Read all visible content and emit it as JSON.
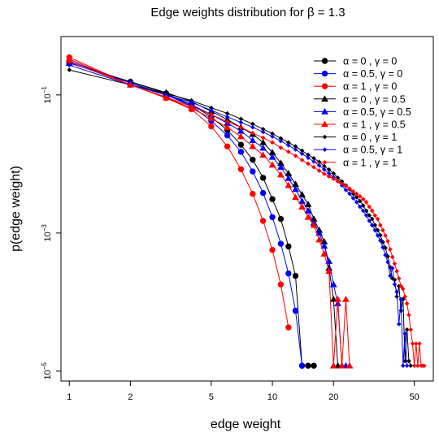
{
  "chart_data": {
    "type": "line",
    "title": "Edge weights distribution for β = 1.3",
    "xlabel": "edge weight",
    "ylabel": "p(edge weight)",
    "xscale": "log",
    "yscale": "log",
    "xlim": [
      0.91,
      62
    ],
    "ylim": [
      7.2e-06,
      0.7
    ],
    "xticks": [
      1,
      2,
      5,
      10,
      20,
      50
    ],
    "xtick_labels": [
      "1",
      "2",
      "5",
      "10",
      "20",
      "50"
    ],
    "yticks": [
      0.1,
      0.001,
      1e-05
    ],
    "ytick_labels": [
      {
        "base": "10",
        "exp": "−1"
      },
      {
        "base": "10",
        "exp": "−3"
      },
      {
        "base": "10",
        "exp": "−5"
      }
    ],
    "grid": false,
    "legend_position": "top-right",
    "series": [
      {
        "name": "α = 0   , γ = 0",
        "color": "#000000",
        "marker": "circle",
        "x": [
          1,
          2,
          3,
          4,
          5,
          6,
          7,
          8,
          9,
          10,
          11,
          12,
          13,
          14,
          15,
          16
        ],
        "y": [
          0.29,
          0.155,
          0.105,
          0.072,
          0.048,
          0.031,
          0.019,
          0.0115,
          0.0063,
          0.0031,
          0.0016,
          0.00064,
          0.00024,
          1.2e-05,
          1.2e-05,
          1.2e-05
        ]
      },
      {
        "name": "α = 0.5, γ = 0",
        "color": "#0000ff",
        "marker": "circle",
        "x": [
          1,
          2,
          3,
          4,
          5,
          6,
          7,
          8,
          9,
          10,
          11,
          12,
          13,
          14
        ],
        "y": [
          0.31,
          0.15,
          0.1,
          0.069,
          0.042,
          0.026,
          0.015,
          0.0078,
          0.0038,
          0.0017,
          0.0007,
          0.00026,
          7.5e-05,
          1.2e-05
        ]
      },
      {
        "name": "α = 1   , γ = 0",
        "color": "#ff0000",
        "marker": "circle",
        "x": [
          1,
          2,
          3,
          4,
          5,
          6,
          7,
          8,
          9,
          10,
          11,
          12
        ],
        "y": [
          0.35,
          0.14,
          0.09,
          0.062,
          0.035,
          0.018,
          0.0084,
          0.0037,
          0.0015,
          0.00057,
          0.00018,
          4.3e-05
        ]
      },
      {
        "name": "α = 0   , γ = 0.5",
        "color": "#000000",
        "marker": "triangle",
        "x": [
          1,
          2,
          3,
          4,
          5,
          6,
          7,
          8,
          9,
          10,
          11,
          12,
          13,
          14,
          15,
          16,
          17,
          18,
          19,
          20,
          21,
          22
        ],
        "y": [
          0.29,
          0.155,
          0.108,
          0.08,
          0.058,
          0.044,
          0.034,
          0.027,
          0.0205,
          0.0147,
          0.0103,
          0.0073,
          0.0051,
          0.0036,
          0.0026,
          0.0016,
          0.0011,
          0.00075,
          0.00031,
          0.00011,
          1.2e-05,
          1.2e-05
        ]
      },
      {
        "name": "α = 0.5, γ = 0.5",
        "color": "#0000ff",
        "marker": "triangle",
        "x": [
          1,
          2,
          3,
          4,
          5,
          6,
          7,
          8,
          9,
          10,
          11,
          12,
          13,
          14,
          15,
          16,
          17,
          18,
          19,
          20,
          21,
          22,
          23
        ],
        "y": [
          0.29,
          0.15,
          0.1,
          0.072,
          0.052,
          0.039,
          0.03,
          0.022,
          0.017,
          0.0126,
          0.009,
          0.0062,
          0.0043,
          0.0029,
          0.0021,
          0.0014,
          0.001,
          0.00065,
          0.00039,
          0.00018,
          9.5e-05,
          1.2e-05,
          1.2e-05
        ]
      },
      {
        "name": "α = 1   , γ = 0.5",
        "color": "#ff0000",
        "marker": "triangle",
        "x": [
          1,
          2,
          3,
          4,
          5,
          6,
          7,
          8,
          9,
          10,
          11,
          12,
          13,
          14,
          15,
          16,
          17,
          18,
          19,
          20,
          21,
          22,
          23,
          24
        ],
        "y": [
          0.33,
          0.14,
          0.092,
          0.064,
          0.046,
          0.034,
          0.025,
          0.018,
          0.0135,
          0.0097,
          0.007,
          0.0049,
          0.0033,
          0.0024,
          0.0017,
          0.0013,
          0.0008,
          0.0005,
          0.00028,
          1.2e-05,
          0.00011,
          1.2e-05,
          0.00011,
          1.2e-05
        ]
      },
      {
        "name": "α = 0   , γ = 1",
        "color": "#000000",
        "marker": "diamond",
        "x": [
          1,
          2,
          3,
          4,
          5,
          6,
          7,
          8,
          9,
          10,
          11,
          12,
          13,
          14,
          15,
          16,
          17,
          18,
          19,
          20,
          21,
          22,
          23,
          24,
          25,
          26,
          27,
          28,
          29,
          30,
          31,
          32,
          33,
          34,
          35,
          36,
          37,
          38,
          39,
          40,
          41,
          42,
          43,
          44,
          45,
          46,
          47,
          48
        ],
        "y": [
          0.23,
          0.14,
          0.105,
          0.083,
          0.065,
          0.054,
          0.045,
          0.038,
          0.032,
          0.0275,
          0.0235,
          0.0205,
          0.018,
          0.0156,
          0.0136,
          0.0121,
          0.0107,
          0.0093,
          0.0083,
          0.0073,
          0.0063,
          0.0056,
          0.0049,
          0.0043,
          0.0037,
          0.0033,
          0.0029,
          0.0025,
          0.0021,
          0.0018,
          0.0016,
          0.0013,
          0.0011,
          0.00093,
          0.00074,
          0.00061,
          0.00046,
          0.00032,
          0.00022,
          0.00021,
          0.00012,
          0.00017,
          7.5e-05,
          0.00011,
          1.4e-05,
          4e-05,
          1.4e-05,
          1.2e-05
        ]
      },
      {
        "name": "α = 0.5, γ = 1",
        "color": "#0000ff",
        "marker": "diamond",
        "x": [
          1,
          2,
          3,
          4,
          5,
          6,
          7,
          8,
          9,
          10,
          11,
          12,
          13,
          14,
          15,
          16,
          17,
          18,
          19,
          20,
          21,
          22,
          23,
          24,
          25,
          26,
          27,
          28,
          29,
          30,
          31,
          32,
          33,
          34,
          35,
          36,
          37,
          38,
          39,
          40,
          41,
          42,
          43,
          44,
          45,
          46
        ],
        "y": [
          0.27,
          0.14,
          0.1,
          0.078,
          0.06,
          0.048,
          0.04,
          0.034,
          0.029,
          0.025,
          0.0215,
          0.0186,
          0.0162,
          0.0141,
          0.0123,
          0.0108,
          0.0095,
          0.0083,
          0.0073,
          0.0064,
          0.0056,
          0.0049,
          0.0042,
          0.0037,
          0.0032,
          0.0028,
          0.0024,
          0.0021,
          0.0018,
          0.0015,
          0.0013,
          0.0011,
          0.00092,
          0.00078,
          0.00062,
          0.00048,
          0.00038,
          0.00024,
          0.00031,
          0.00018,
          0.00014,
          4.8e-05,
          0.00011,
          1.2e-05,
          3.5e-05,
          1.2e-05
        ]
      },
      {
        "name": "α = 1   , γ = 1",
        "color": "#ff0000",
        "marker": "diamond",
        "x": [
          1,
          2,
          3,
          4,
          5,
          6,
          7,
          8,
          9,
          10,
          11,
          12,
          13,
          14,
          15,
          16,
          17,
          18,
          19,
          20,
          21,
          22,
          23,
          24,
          25,
          26,
          27,
          28,
          29,
          30,
          31,
          32,
          33,
          34,
          35,
          36,
          37,
          38,
          39,
          40,
          41,
          42,
          43,
          44,
          45,
          46,
          47,
          48,
          49,
          50,
          51,
          52,
          53,
          54,
          55,
          56
        ],
        "y": [
          0.3,
          0.14,
          0.093,
          0.068,
          0.052,
          0.041,
          0.034,
          0.028,
          0.024,
          0.0205,
          0.0172,
          0.015,
          0.0131,
          0.0114,
          0.0101,
          0.009,
          0.008,
          0.0072,
          0.0066,
          0.0061,
          0.0056,
          0.0052,
          0.0048,
          0.0044,
          0.004,
          0.0037,
          0.0034,
          0.0031,
          0.0028,
          0.0024,
          0.0021,
          0.0018,
          0.0016,
          0.0013,
          0.0011,
          0.00092,
          0.00076,
          0.00058,
          0.00045,
          0.00036,
          0.00028,
          0.00022,
          0.00017,
          0.000155,
          0.00012,
          9.5e-05,
          6.5e-05,
          4e-05,
          2.5e-05,
          1.2e-05,
          2.5e-05,
          1.2e-05,
          2.5e-05,
          1.2e-05,
          1.2e-05,
          1.2e-05
        ]
      }
    ]
  }
}
